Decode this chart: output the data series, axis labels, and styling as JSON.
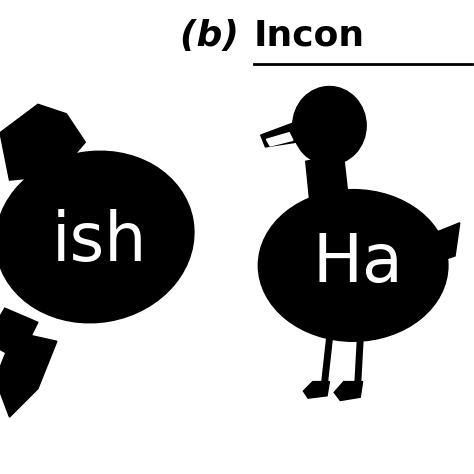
{
  "bg_color": "#ffffff",
  "title_b": "(b) ",
  "title_incon": "Incon",
  "title_fontsize": 26,
  "left_label": "ish",
  "right_label": "Ha",
  "label_color": "#ffffff",
  "label_fontsize": 48,
  "shape_color": "#000000",
  "fig_width": 4.74,
  "fig_height": 4.74,
  "dpi": 100
}
